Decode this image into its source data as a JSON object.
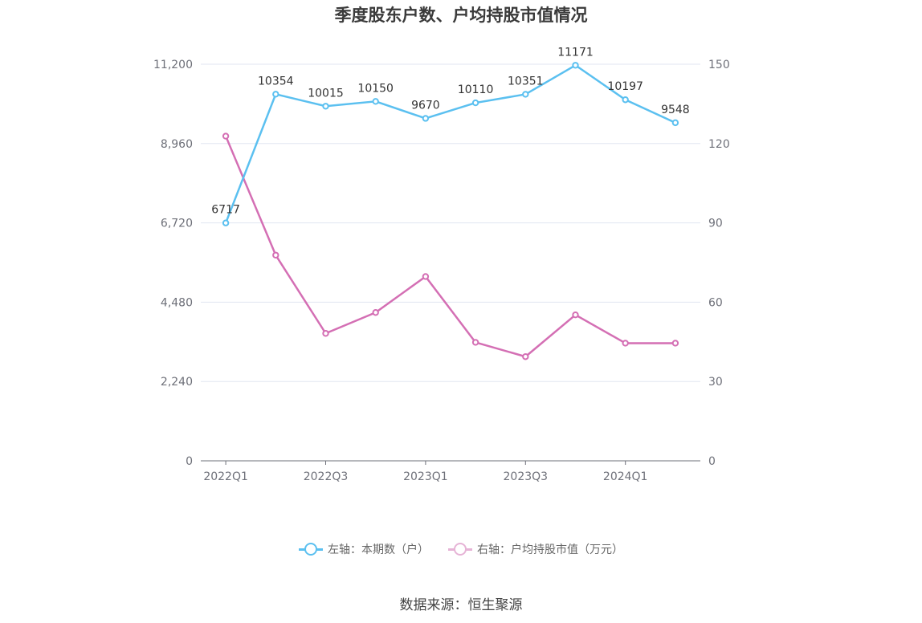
{
  "colors": {
    "series_left": "#5bc0f0",
    "series_right": "#d46fb4",
    "grid": "#e0e6f1",
    "axis": "#6e7079"
  },
  "chart_data": {
    "type": "line",
    "title": "季度股东户数、户均持股市值情况",
    "categories": [
      "2022Q1",
      "2022Q2",
      "2022Q3",
      "2022Q4",
      "2023Q1",
      "2023Q2",
      "2023Q3",
      "2023Q4",
      "2024Q1",
      "2024Q2"
    ],
    "x_tick_labels": [
      "2022Q1",
      "2022Q3",
      "2023Q1",
      "2023Q3",
      "2024Q1"
    ],
    "y_left": {
      "min": 0,
      "max": 11200,
      "ticks": [
        "0",
        "2,240",
        "4,480",
        "6,720",
        "8,960",
        "11,200"
      ]
    },
    "y_right": {
      "min": 0,
      "max": 150,
      "ticks": [
        "0",
        "30",
        "60",
        "90",
        "120",
        "150"
      ]
    },
    "grid": true,
    "legend_position": "bottom",
    "series": [
      {
        "name": "左轴：本期数（户）",
        "axis": "left",
        "values": [
          6717,
          10354,
          10015,
          10150,
          9670,
          10110,
          10351,
          11171,
          10197,
          9548
        ],
        "show_labels": true
      },
      {
        "name": "右轴：户均持股市值（万元）",
        "axis": "right",
        "values": [
          122.8,
          77.8,
          48.2,
          56.1,
          69.7,
          44.8,
          39.4,
          55.2,
          44.5,
          44.5
        ],
        "show_labels": false
      }
    ]
  },
  "source": "数据来源：恒生聚源"
}
